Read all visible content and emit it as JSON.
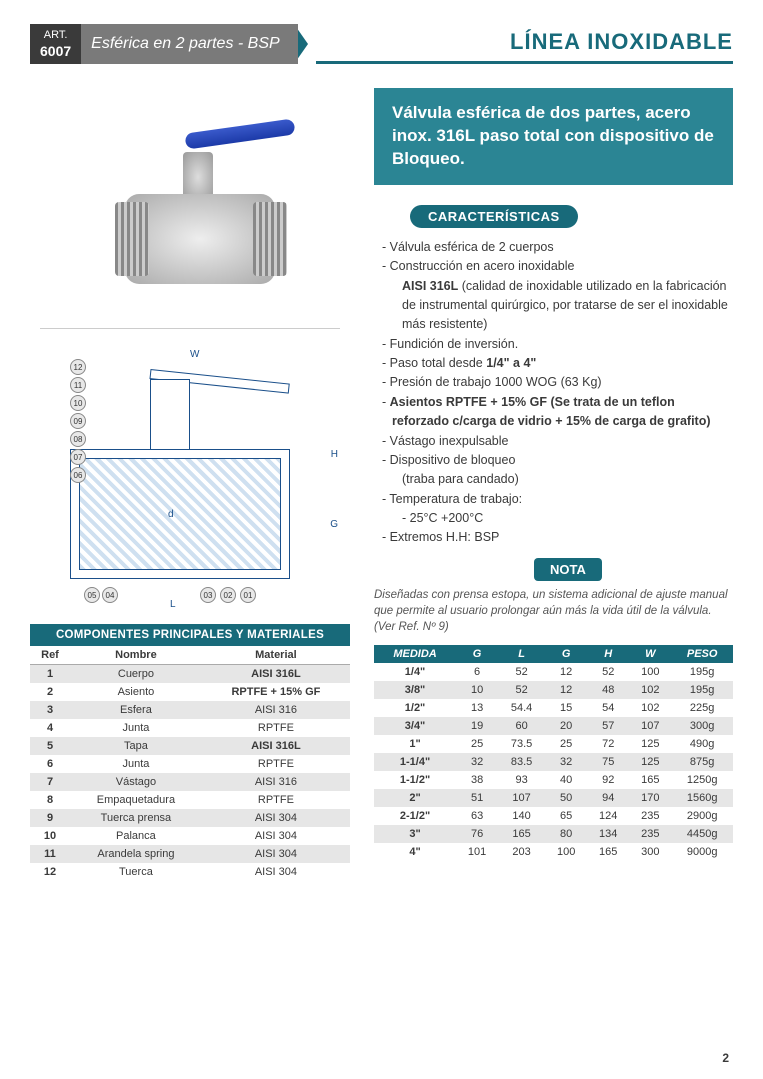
{
  "header": {
    "art_label": "ART.",
    "art_number": "6007",
    "subtitle": "Esférica en 2 partes - BSP",
    "line_title": "LÍNEA INOXIDABLE"
  },
  "colors": {
    "teal": "#186a7a",
    "teal_light": "#2b8594",
    "dark": "#3a3a3a",
    "grey": "#7a7a7a",
    "row_alt": "#e6e6e6"
  },
  "description": "Válvula esférica de dos partes, acero inox. 316L paso total con dispositivo de Bloqueo.",
  "sections": {
    "features_title": "CARACTERÍSTICAS",
    "note_title": "NOTA"
  },
  "features": [
    {
      "text": "Válvula esférica de 2 cuerpos"
    },
    {
      "text": "Construcción en acero inoxidable"
    },
    {
      "text": "AISI 316L (calidad de inoxidable utilizado en la fabricación de instrumental quirúrgico, por tratarse de ser el inoxidable más resistente)",
      "sub": true,
      "bold_prefix": "AISI 316L"
    },
    {
      "text": "Fundición de inversión."
    },
    {
      "text": "Paso total desde 1/4\" a 4\"",
      "bold_range": "1/4\" a 4\""
    },
    {
      "text": "Presión de trabajo 1000 WOG (63 Kg)"
    },
    {
      "text": "Asientos RPTFE + 15% GF (Se trata de un teflon reforzado c/carga de vidrio + 15% de carga de grafito)",
      "bold": true
    },
    {
      "text": "Vástago inexpulsable"
    },
    {
      "text": "Dispositivo de bloqueo"
    },
    {
      "text": "(traba para candado)",
      "sub": true
    },
    {
      "text": "Temperatura de trabajo:"
    },
    {
      "text": "- 25°C +200°C",
      "sub": true
    },
    {
      "text": "Extremos H.H: BSP"
    }
  ],
  "note_text": "Diseñadas con prensa estopa, un sistema adicional de ajuste manual que permite al usuario prolongar aún más la vida útil de la válvula. (Ver Ref. Nº 9)",
  "diagram": {
    "dims": [
      "W",
      "H",
      "G",
      "d",
      "L"
    ],
    "callouts": [
      "01",
      "02",
      "03",
      "04",
      "05",
      "06",
      "07",
      "08",
      "09",
      "10",
      "11",
      "12"
    ]
  },
  "components": {
    "title": "COMPONENTES PRINCIPALES Y MATERIALES",
    "columns": [
      "Ref",
      "Nombre",
      "Material"
    ],
    "rows": [
      [
        "1",
        "Cuerpo",
        "AISI 316L",
        true
      ],
      [
        "2",
        "Asiento",
        "RPTFE + 15% GF",
        true
      ],
      [
        "3",
        "Esfera",
        "AISI 316",
        false
      ],
      [
        "4",
        "Junta",
        "RPTFE",
        false
      ],
      [
        "5",
        "Tapa",
        "AISI 316L",
        true
      ],
      [
        "6",
        "Junta",
        "RPTFE",
        false
      ],
      [
        "7",
        "Vástago",
        "AISI 316",
        false
      ],
      [
        "8",
        "Empaquetadura",
        "RPTFE",
        false
      ],
      [
        "9",
        "Tuerca prensa",
        "AISI 304",
        false
      ],
      [
        "10",
        "Palanca",
        "AISI 304",
        false
      ],
      [
        "11",
        "Arandela spring",
        "AISI 304",
        false
      ],
      [
        "12",
        "Tuerca",
        "AISI 304",
        false
      ]
    ]
  },
  "dimensions": {
    "columns": [
      "MEDIDA",
      "G",
      "L",
      "G",
      "H",
      "W",
      "PESO"
    ],
    "rows": [
      [
        "1/4\"",
        "6",
        "52",
        "12",
        "52",
        "100",
        "195g"
      ],
      [
        "3/8\"",
        "10",
        "52",
        "12",
        "48",
        "102",
        "195g"
      ],
      [
        "1/2\"",
        "13",
        "54.4",
        "15",
        "54",
        "102",
        "225g"
      ],
      [
        "3/4\"",
        "19",
        "60",
        "20",
        "57",
        "107",
        "300g"
      ],
      [
        "1\"",
        "25",
        "73.5",
        "25",
        "72",
        "125",
        "490g"
      ],
      [
        "1-1/4\"",
        "32",
        "83.5",
        "32",
        "75",
        "125",
        "875g"
      ],
      [
        "1-1/2\"",
        "38",
        "93",
        "40",
        "92",
        "165",
        "1250g"
      ],
      [
        "2\"",
        "51",
        "107",
        "50",
        "94",
        "170",
        "1560g"
      ],
      [
        "2-1/2\"",
        "63",
        "140",
        "65",
        "124",
        "235",
        "2900g"
      ],
      [
        "3\"",
        "76",
        "165",
        "80",
        "134",
        "235",
        "4450g"
      ],
      [
        "4\"",
        "101",
        "203",
        "100",
        "165",
        "300",
        "9000g"
      ]
    ]
  },
  "page_number": "2"
}
